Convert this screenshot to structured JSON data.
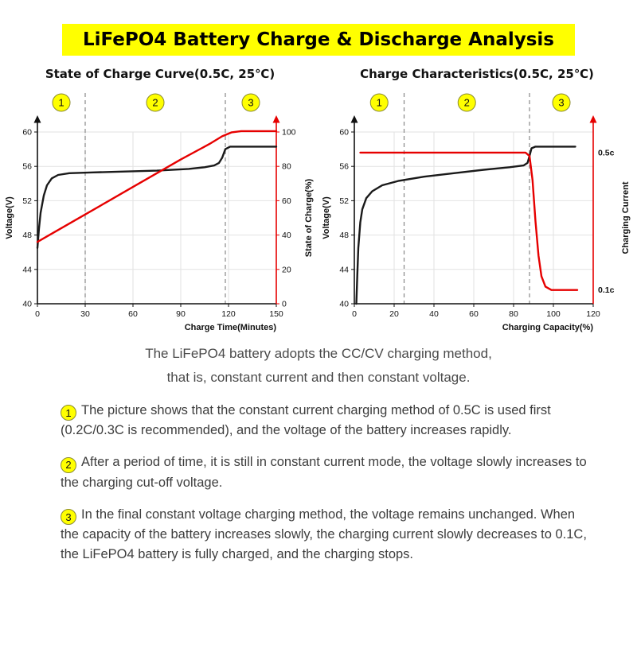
{
  "page": {
    "title": "LiFePO4 Battery Charge & Discharge Analysis",
    "accent_yellow": "#ffff00",
    "curve_black": "#1a1a1a",
    "curve_red": "#e60000"
  },
  "intro": {
    "line1": "The LiFePO4 battery adopts the CC/CV charging method,",
    "line2": "that is, constant current and then constant voltage."
  },
  "notes": [
    {
      "num": "1",
      "text": "The picture shows that the constant current charging method of 0.5C is used first (0.2C/0.3C is recommended), and the voltage of the battery increases rapidly."
    },
    {
      "num": "2",
      "text": "After a period of time, it is still in constant current mode, the voltage slowly increases to the charging cut-off voltage."
    },
    {
      "num": "3",
      "text": "In the final constant voltage charging method, the voltage remains unchanged. When the capacity of the battery increases slowly, the charging current slowly decreases to 0.1C, the LiFePO4 battery is fully charged, and the charging stops."
    }
  ],
  "chart_data": [
    {
      "type": "line",
      "title": "State of Charge Curve(0.5C, 25℃)",
      "xlabel": "Charge Time(Minutes)",
      "ylabel_left": "Voltage(V)",
      "ylabel_right": "State of Charge(%)",
      "x_range": [
        0,
        150
      ],
      "x_ticks": [
        0,
        30,
        60,
        90,
        120,
        150
      ],
      "y_left_range": [
        40,
        60
      ],
      "y_left_ticks": [
        40,
        44,
        48,
        52,
        56,
        60
      ],
      "y_right_range": [
        0,
        100
      ],
      "y_right_ticks": [
        0,
        20,
        40,
        60,
        80,
        100
      ],
      "grid": true,
      "legend": "none",
      "region_dividers_x": [
        30,
        118
      ],
      "region_labels": [
        "1",
        "2",
        "3"
      ],
      "series": [
        {
          "name": "Voltage",
          "axis": "left",
          "color": "#1a1a1a",
          "points": [
            [
              0,
              46.5
            ],
            [
              1,
              48.8
            ],
            [
              2,
              50.6
            ],
            [
              4,
              52.6
            ],
            [
              6,
              53.8
            ],
            [
              9,
              54.6
            ],
            [
              13,
              55.0
            ],
            [
              20,
              55.2
            ],
            [
              35,
              55.3
            ],
            [
              55,
              55.4
            ],
            [
              75,
              55.5
            ],
            [
              95,
              55.7
            ],
            [
              105,
              55.9
            ],
            [
              111,
              56.1
            ],
            [
              114,
              56.4
            ],
            [
              116,
              57.0
            ],
            [
              118,
              58.0
            ],
            [
              121,
              58.3
            ],
            [
              150,
              58.3
            ]
          ]
        },
        {
          "name": "State of Charge",
          "axis": "right",
          "color": "#e60000",
          "points": [
            [
              0,
              36
            ],
            [
              30,
              52
            ],
            [
              60,
              68
            ],
            [
              90,
              84
            ],
            [
              108,
              93
            ],
            [
              116,
              97.5
            ],
            [
              122,
              99.8
            ],
            [
              128,
              100.5
            ],
            [
              150,
              100.5
            ]
          ]
        }
      ]
    },
    {
      "type": "line",
      "title": "Charge Characteristics(0.5C, 25℃)",
      "xlabel": "Charging Capacity(%)",
      "ylabel_left": "Voltage(V)",
      "ylabel_right": "Charging Current",
      "x_range": [
        0,
        120
      ],
      "x_ticks": [
        0,
        20,
        40,
        60,
        80,
        100,
        120
      ],
      "y_left_range": [
        40,
        60
      ],
      "y_left_ticks": [
        40,
        44,
        48,
        52,
        56,
        60
      ],
      "y_right_range": [
        0.06,
        0.56
      ],
      "y_right_labels": [
        {
          "text": "0.5c",
          "value": 0.5
        },
        {
          "text": "0.1c",
          "value": 0.1
        }
      ],
      "grid": true,
      "legend": "none",
      "region_dividers_x": [
        25,
        88
      ],
      "region_labels": [
        "1",
        "2",
        "3"
      ],
      "series": [
        {
          "name": "Voltage",
          "axis": "left",
          "color": "#1a1a1a",
          "points": [
            [
              1,
              40
            ],
            [
              1.5,
              43.5
            ],
            [
              2,
              46.5
            ],
            [
              3,
              49.5
            ],
            [
              4,
              51
            ],
            [
              6,
              52.3
            ],
            [
              9,
              53.1
            ],
            [
              14,
              53.8
            ],
            [
              22,
              54.3
            ],
            [
              35,
              54.8
            ],
            [
              50,
              55.2
            ],
            [
              65,
              55.6
            ],
            [
              78,
              55.9
            ],
            [
              85,
              56.1
            ],
            [
              87,
              56.4
            ],
            [
              88,
              57.2
            ],
            [
              89,
              58.1
            ],
            [
              91,
              58.3
            ],
            [
              111,
              58.3
            ]
          ]
        },
        {
          "name": "Charging Current",
          "axis": "right",
          "color": "#e60000",
          "points": [
            [
              3,
              0.5
            ],
            [
              86,
              0.5
            ],
            [
              88,
              0.49
            ],
            [
              89.5,
              0.42
            ],
            [
              91,
              0.3
            ],
            [
              92.5,
              0.2
            ],
            [
              94,
              0.14
            ],
            [
              96,
              0.11
            ],
            [
              99,
              0.1
            ],
            [
              112,
              0.1
            ]
          ]
        }
      ]
    }
  ]
}
